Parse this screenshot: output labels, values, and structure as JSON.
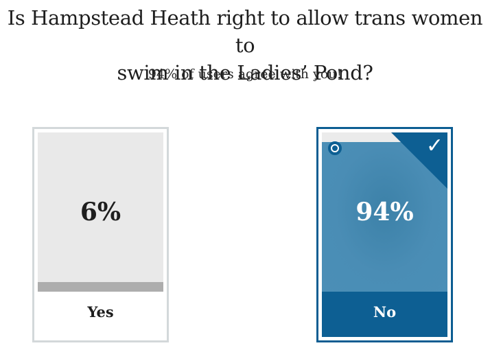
{
  "poll": {
    "question_line1": "Is Hampstead Heath right to allow trans women to",
    "question_line2": "swim in the Ladies’ Pond?",
    "result_message": "94% of users agree with you!",
    "options": [
      {
        "label": "Yes",
        "percent_text": "6%",
        "percent": 6,
        "selected": false
      },
      {
        "label": "No",
        "percent_text": "94%",
        "percent": 94,
        "selected": true
      }
    ]
  },
  "colors": {
    "selected_accent": "#0d5f93",
    "selected_fill": "#4a8db5",
    "unselected_fill": "#adadad",
    "unselected_border": "#d3d8da"
  },
  "icons": {
    "selected_check": "check-icon",
    "selected_radio": "radio-selected-icon"
  }
}
